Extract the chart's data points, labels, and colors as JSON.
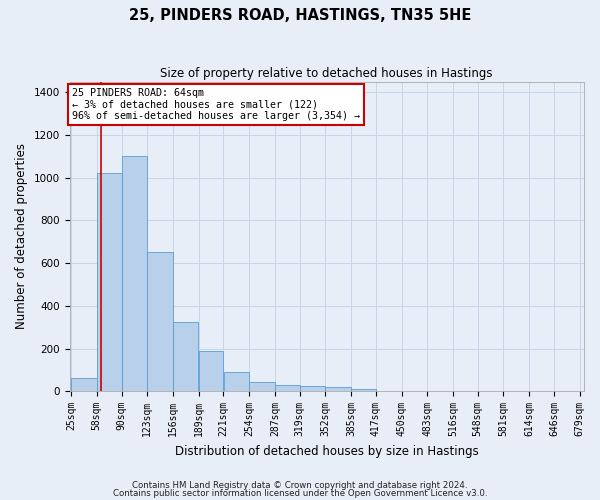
{
  "title1": "25, PINDERS ROAD, HASTINGS, TN35 5HE",
  "title2": "Size of property relative to detached houses in Hastings",
  "xlabel": "Distribution of detached houses by size in Hastings",
  "ylabel": "Number of detached properties",
  "footnote1": "Contains HM Land Registry data © Crown copyright and database right 2024.",
  "footnote2": "Contains public sector information licensed under the Open Government Licence v3.0.",
  "annotation_title": "25 PINDERS ROAD: 64sqm",
  "annotation_line2": "← 3% of detached houses are smaller (122)",
  "annotation_line3": "96% of semi-detached houses are larger (3,354) →",
  "property_size_sqm": 64,
  "bar_left_edges": [
    25,
    58,
    90,
    123,
    156,
    189,
    221,
    254,
    287,
    319,
    352,
    385,
    417,
    450,
    483,
    516,
    548,
    581,
    614,
    646
  ],
  "bar_widths": [
    33,
    32,
    33,
    33,
    33,
    32,
    33,
    33,
    32,
    33,
    33,
    32,
    33,
    33,
    33,
    32,
    33,
    33,
    32,
    33
  ],
  "bar_heights": [
    60,
    1020,
    1100,
    650,
    325,
    190,
    90,
    42,
    28,
    25,
    20,
    12,
    0,
    0,
    0,
    0,
    0,
    0,
    0,
    0
  ],
  "bar_color": "#b8d0ea",
  "bar_edge_color": "#5a9fd4",
  "property_line_color": "#cc0000",
  "ylim": [
    0,
    1450
  ],
  "yticks": [
    0,
    200,
    400,
    600,
    800,
    1000,
    1200,
    1400
  ],
  "tick_labels": [
    "25sqm",
    "58sqm",
    "90sqm",
    "123sqm",
    "156sqm",
    "189sqm",
    "221sqm",
    "254sqm",
    "287sqm",
    "319sqm",
    "352sqm",
    "385sqm",
    "417sqm",
    "450sqm",
    "483sqm",
    "516sqm",
    "548sqm",
    "581sqm",
    "614sqm",
    "646sqm",
    "679sqm"
  ],
  "grid_color": "#c8d4e8",
  "background_color": "#e8eef8",
  "plot_bg_color": "#e8eef8",
  "annotation_box_facecolor": "#ffffff",
  "annotation_box_edgecolor": "#cc0000"
}
